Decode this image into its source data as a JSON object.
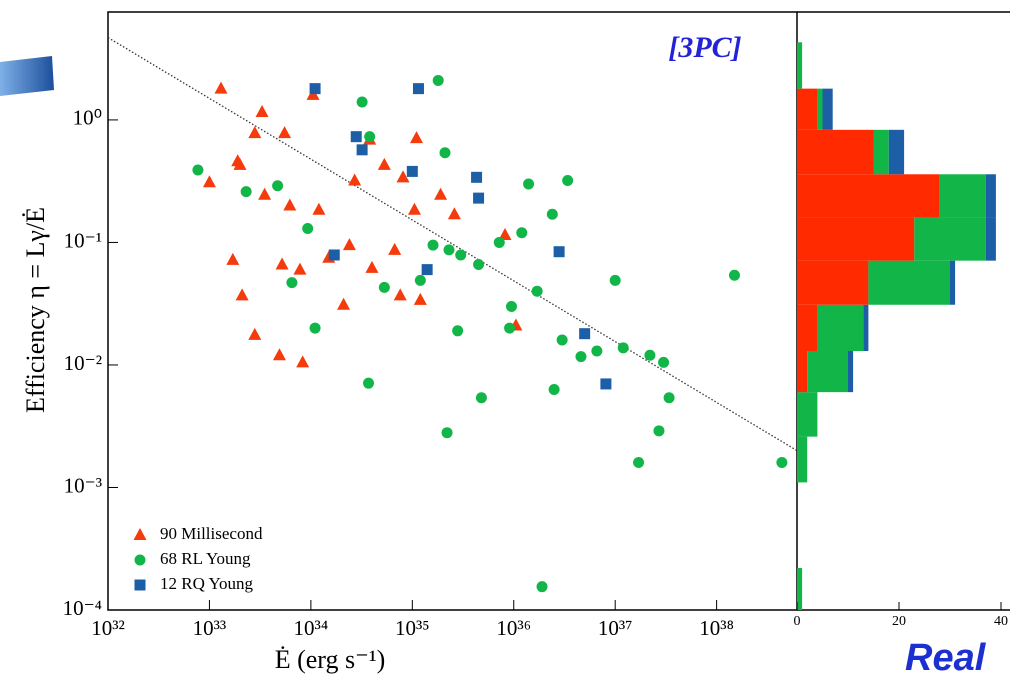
{
  "chart_data": [
    {
      "type": "scatter",
      "xlabel": "Ė (erg s⁻¹)",
      "ylabel": "Efficiency η = Lγ/Ė",
      "annotations": [
        "[3PC]",
        "Real"
      ],
      "xscale": "log",
      "yscale": "log",
      "xlim": [
        1e+32,
        6.2e+38
      ],
      "ylim": [
        0.0001,
        7.6
      ],
      "xticks": [
        {
          "value": 1e+32,
          "label": "10³²"
        },
        {
          "value": 1e+33,
          "label": "10³³"
        },
        {
          "value": 1e+34,
          "label": "10³⁴"
        },
        {
          "value": 1e+35,
          "label": "10³⁵"
        },
        {
          "value": 1e+36,
          "label": "10³⁶"
        },
        {
          "value": 1e+37,
          "label": "10³⁷"
        },
        {
          "value": 1e+38,
          "label": "10³⁸"
        }
      ],
      "yticks": [
        {
          "value": 0.0001,
          "label": "10⁻⁴"
        },
        {
          "value": 0.001,
          "label": "10⁻³"
        },
        {
          "value": 0.01,
          "label": "10⁻²"
        },
        {
          "value": 0.1,
          "label": "10⁻¹"
        },
        {
          "value": 1,
          "label": "10⁰"
        }
      ],
      "legend": "lower left",
      "trend_line": {
        "x": [
          1e+32,
          6.2e+38
        ],
        "y": [
          4.7,
          0.002
        ]
      },
      "series": [
        {
          "name": "90 Millisecond",
          "color": "#f53a0c",
          "marker": "triangle",
          "x": [
            1.3e+33,
            1e+33,
            1.9e+33,
            3.3e+33,
            2.8e+33,
            5.5e+33,
            2.1e+33,
            2.8e+33,
            4.9e+33,
            8.3e+33,
            3.5e+33,
            6.2e+33,
            1.2e+34,
            1.5e+34,
            2.4e+34,
            4e+34,
            6.7e+34,
            1.05e+35,
            2.7e+34,
            5.3e+34,
            8.1e+34,
            1.2e+35,
            1.1e+35,
            2.6e+35,
            8.2e+35,
            1.05e+36,
            5.2e+33,
            2e+33,
            1.05e+34,
            3.8e+34,
            7.6e+34,
            1.9e+35,
            7.8e+33,
            1.7e+33,
            2.1e+34
          ],
          "values": [
            1.8,
            0.31,
            0.46,
            1.16,
            0.78,
            0.78,
            0.037,
            0.0176,
            0.012,
            0.0105,
            0.245,
            0.2,
            0.185,
            0.075,
            0.095,
            0.062,
            0.087,
            0.185,
            0.32,
            0.43,
            0.34,
            0.034,
            0.71,
            0.17,
            0.115,
            0.021,
            0.066,
            0.43,
            1.6,
            0.69,
            0.037,
            0.245,
            0.06,
            0.072,
            0.031
          ]
        },
        {
          "name": "68 RL Young",
          "color": "#12b548",
          "marker": "circle",
          "x": [
            7.7e+32,
            2.3e+33,
            4.7e+33,
            9.3e+33,
            1.1e+34,
            6.5e+33,
            3.2e+34,
            3.8e+34,
            3.7e+34,
            5.3e+34,
            1.8e+35,
            2.1e+35,
            2.2e+35,
            2.8e+35,
            1.6e+35,
            2.3e+35,
            3e+35,
            4.5e+35,
            4.8e+35,
            7.2e+35,
            9.5e+35,
            9.1e+35,
            1.2e+36,
            1.4e+36,
            2.4e+36,
            1.9e+36,
            2.5e+36,
            3.4e+36,
            4.6e+36,
            6.6e+36,
            1e+37,
            1.2e+37,
            1.7e+37,
            2.2e+37,
            2.7e+37,
            3e+37,
            3.4e+37,
            1.5e+38,
            4.4e+38,
            1.7e+36,
            3e+36,
            1.2e+35
          ],
          "values": [
            0.39,
            0.26,
            0.29,
            0.13,
            0.02,
            0.047,
            1.4,
            0.73,
            0.0071,
            0.043,
            2.1,
            0.54,
            0.0028,
            0.019,
            0.095,
            0.087,
            0.079,
            0.066,
            0.0054,
            0.1,
            0.03,
            0.02,
            0.12,
            0.3,
            0.17,
            0.000155,
            0.0063,
            0.32,
            0.0117,
            0.013,
            0.049,
            0.0138,
            0.0016,
            0.012,
            0.0029,
            0.0105,
            0.0054,
            0.054,
            0.0016,
            0.04,
            0.016,
            0.049
          ]
        },
        {
          "name": "12 RQ Young",
          "color": "#1c5fa6",
          "marker": "square",
          "x": [
            1.1e+34,
            1.15e+35,
            2.8e+34,
            3.2e+34,
            1e+35,
            4.3e+35,
            4.5e+35,
            1.7e+34,
            1.4e+35,
            2.8e+36,
            5e+36,
            8.1e+36
          ],
          "values": [
            1.8,
            1.8,
            0.73,
            0.57,
            0.38,
            0.34,
            0.23,
            0.079,
            0.06,
            0.084,
            0.018,
            0.007
          ]
        }
      ]
    },
    {
      "type": "histogram",
      "orientation": "horizontal",
      "stacked": true,
      "yscale": "log",
      "ylim": [
        0.0001,
        7.6
      ],
      "xlim": [
        0,
        40
      ],
      "xticks": [
        0,
        20,
        40
      ],
      "bins": [
        0.0001,
        0.00022,
        0.0005,
        0.0011,
        0.0026,
        0.006,
        0.013,
        0.031,
        0.071,
        0.16,
        0.36,
        0.83,
        1.8,
        4.3
      ],
      "series": [
        {
          "color": "#ff2a00",
          "values": [
            0,
            0,
            0,
            0,
            0,
            2,
            4,
            14,
            23,
            28,
            15,
            4,
            0
          ]
        },
        {
          "color": "#12b548",
          "values": [
            1,
            0,
            0,
            2,
            4,
            8,
            9,
            16,
            14,
            9,
            3,
            1,
            1
          ]
        },
        {
          "color": "#1c5fa6",
          "values": [
            0,
            0,
            0,
            0,
            0,
            1,
            1,
            1,
            2,
            2,
            3,
            2,
            0
          ]
        }
      ]
    }
  ]
}
